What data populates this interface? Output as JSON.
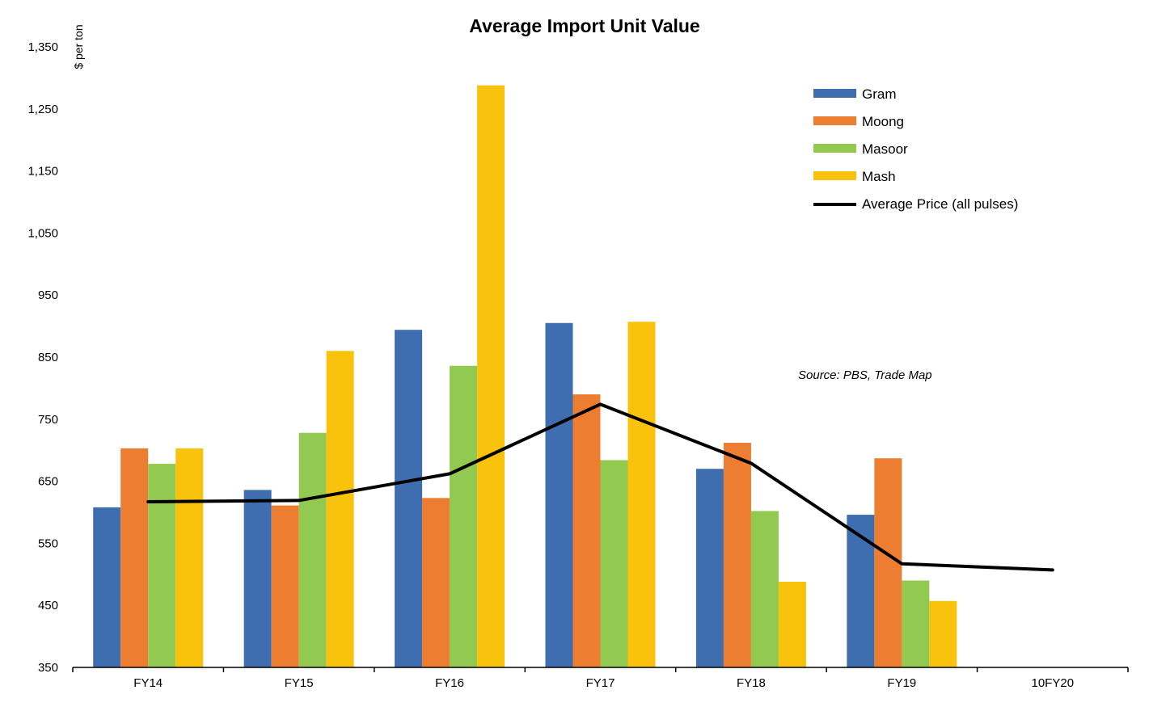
{
  "chart_data": {
    "type": "bar",
    "title": "Average Import Unit Value",
    "ylabel": "$ per ton",
    "xlabel": "",
    "ylim": [
      350,
      1350
    ],
    "yticks": [
      350,
      450,
      550,
      650,
      750,
      850,
      950,
      1050,
      1150,
      1250,
      1350
    ],
    "ytick_labels": [
      "350",
      "450",
      "550",
      "650",
      "750",
      "850",
      "950",
      "1,050",
      "1,150",
      "1,250",
      "1,350"
    ],
    "categories": [
      "FY14",
      "FY15",
      "FY16",
      "FY17",
      "FY18",
      "FY19",
      "10FY20"
    ],
    "series": [
      {
        "name": "Gram",
        "type": "bar",
        "color": "#3F6EB0",
        "values": [
          608,
          636,
          894,
          905,
          670,
          596,
          null
        ]
      },
      {
        "name": "Moong",
        "type": "bar",
        "color": "#ED7D31",
        "values": [
          703,
          611,
          623,
          790,
          712,
          687,
          null
        ]
      },
      {
        "name": "Masoor",
        "type": "bar",
        "color": "#92C950",
        "values": [
          678,
          728,
          836,
          684,
          602,
          490,
          null
        ]
      },
      {
        "name": "Mash",
        "type": "bar",
        "color": "#F9C20C",
        "values": [
          703,
          860,
          1288,
          907,
          488,
          457,
          null
        ]
      },
      {
        "name": "Average Price (all pulses)",
        "type": "line",
        "color": "#000000",
        "values": [
          617,
          619,
          662,
          774,
          679,
          517,
          507
        ]
      }
    ],
    "legend_position": "top-right",
    "annotation": "Source: PBS, Trade Map",
    "grid": false
  }
}
